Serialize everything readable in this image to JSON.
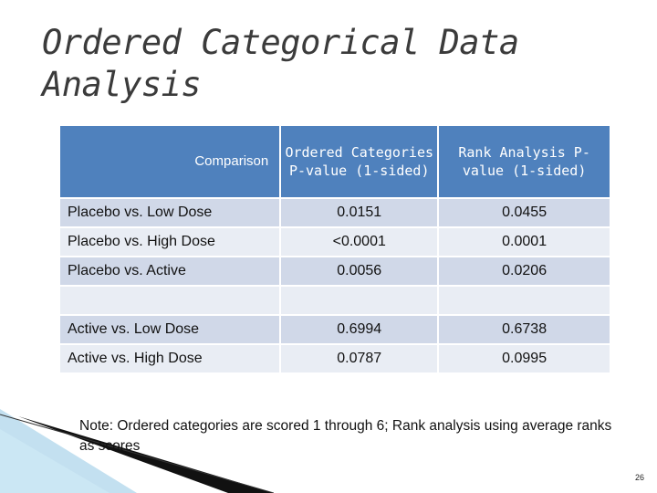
{
  "slide": {
    "title": "Ordered Categorical Data Analysis",
    "page_number": "26"
  },
  "table": {
    "headers": [
      "Comparison",
      "Ordered Categories P-value (1-sided)",
      "Rank Analysis P-value (1-sided)"
    ],
    "rows": [
      {
        "comparison": "Placebo vs. Low Dose",
        "ordered": "0.0151",
        "rank": "0.0455"
      },
      {
        "comparison": "Placebo vs. High Dose",
        "ordered": "<0.0001",
        "rank": "0.0001"
      },
      {
        "comparison": "Placebo vs. Active",
        "ordered": "0.0056",
        "rank": "0.0206"
      },
      {
        "comparison": "",
        "ordered": "",
        "rank": ""
      },
      {
        "comparison": "Active vs. Low Dose",
        "ordered": "0.6994",
        "rank": "0.6738"
      },
      {
        "comparison": "Active vs. High Dose",
        "ordered": "0.0787",
        "rank": "0.0995"
      }
    ]
  },
  "note": "Note:  Ordered categories are scored 1 through 6;  Rank analysis using average ranks as scores",
  "colors": {
    "header_fill": "#4f81bd",
    "row_band_a": "#d0d8e8",
    "row_band_b": "#e9edf4",
    "title_text": "#3b3b3b",
    "decoration_light": "#a9d3ea",
    "decoration_dark": "#111111"
  }
}
